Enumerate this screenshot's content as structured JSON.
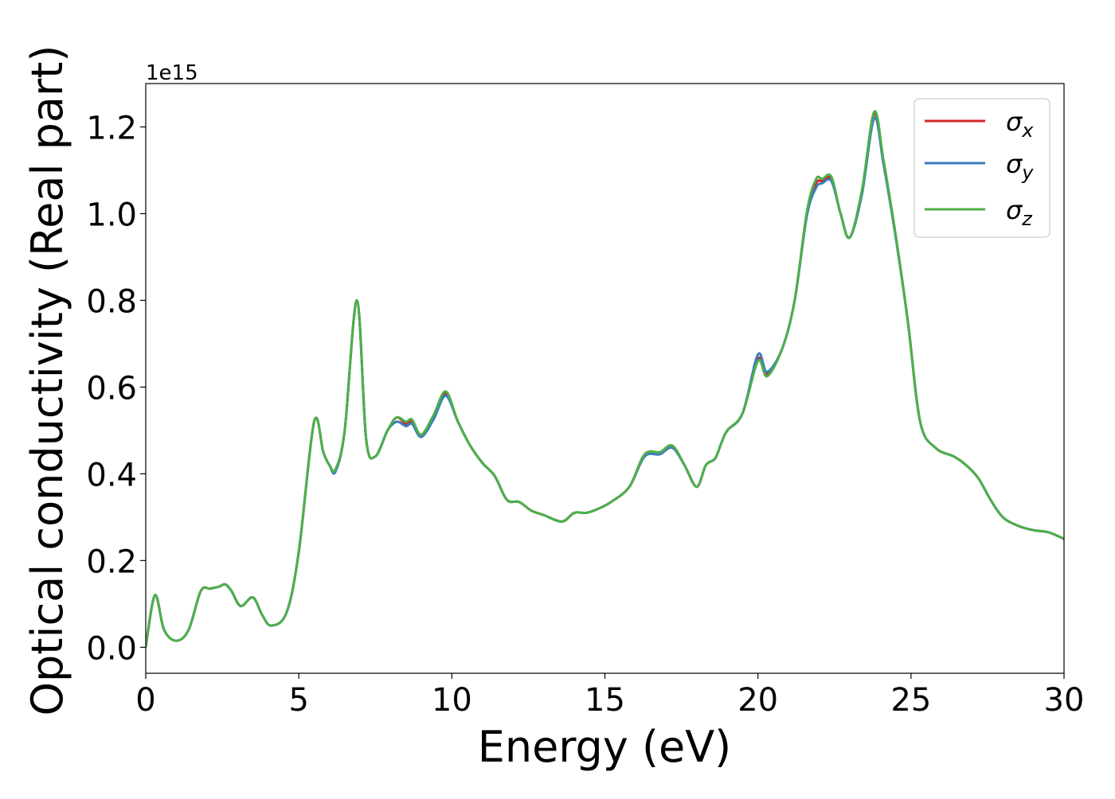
{
  "chart_data": {
    "type": "line",
    "xlabel": "Energy (eV)",
    "ylabel": "Optical conductivity (Real part)",
    "y_offset_text": "1e15",
    "xlim": [
      0,
      30
    ],
    "ylim": [
      -0.06,
      1.3
    ],
    "x_ticks": [
      0,
      5,
      10,
      15,
      20,
      25,
      30
    ],
    "x_tick_labels": [
      "0",
      "5",
      "10",
      "15",
      "20",
      "25",
      "30"
    ],
    "y_ticks": [
      0.0,
      0.2,
      0.4,
      0.6,
      0.8,
      1.0,
      1.2
    ],
    "y_tick_labels": [
      "0.0",
      "0.2",
      "0.4",
      "0.6",
      "0.8",
      "1.0",
      "1.2"
    ],
    "grid": false,
    "legend_position": "top-right",
    "x": [
      0,
      0.3,
      0.6,
      1.0,
      1.4,
      1.8,
      2.1,
      2.4,
      2.6,
      2.8,
      3.1,
      3.5,
      3.8,
      4.1,
      4.6,
      5.0,
      5.5,
      5.8,
      6.0,
      6.2,
      6.5,
      6.9,
      7.2,
      7.5,
      7.9,
      8.2,
      8.5,
      8.7,
      9.0,
      9.4,
      9.8,
      10.2,
      10.6,
      11.0,
      11.4,
      11.8,
      12.2,
      12.6,
      13.0,
      13.6,
      14.0,
      14.4,
      14.8,
      15.2,
      15.8,
      16.3,
      16.8,
      17.2,
      17.6,
      18.0,
      18.3,
      18.6,
      18.8,
      19.0,
      19.5,
      20.0,
      20.3,
      20.8,
      21.2,
      21.6,
      21.9,
      22.1,
      22.4,
      22.7,
      23.0,
      23.4,
      23.8,
      24.1,
      24.5,
      24.9,
      25.3,
      25.8,
      26.4,
      26.8,
      27.2,
      27.6,
      28.0,
      28.5,
      29.0,
      29.5,
      30.0
    ],
    "series": [
      {
        "name": "σx",
        "color": "#d62728",
        "values": [
          0.0,
          0.12,
          0.04,
          0.015,
          0.04,
          0.13,
          0.135,
          0.14,
          0.145,
          0.13,
          0.095,
          0.115,
          0.075,
          0.05,
          0.08,
          0.22,
          0.52,
          0.45,
          0.42,
          0.41,
          0.5,
          0.8,
          0.48,
          0.44,
          0.5,
          0.53,
          0.515,
          0.52,
          0.49,
          0.53,
          0.585,
          0.52,
          0.465,
          0.425,
          0.395,
          0.34,
          0.335,
          0.315,
          0.305,
          0.29,
          0.31,
          0.31,
          0.32,
          0.335,
          0.37,
          0.445,
          0.45,
          0.465,
          0.42,
          0.37,
          0.42,
          0.435,
          0.47,
          0.5,
          0.54,
          0.665,
          0.63,
          0.69,
          0.8,
          1.0,
          1.07,
          1.075,
          1.08,
          1.0,
          0.945,
          1.05,
          1.23,
          1.12,
          0.95,
          0.75,
          0.52,
          0.46,
          0.44,
          0.42,
          0.39,
          0.34,
          0.3,
          0.28,
          0.27,
          0.265,
          0.25
        ]
      },
      {
        "name": "σy",
        "color": "#3b7cc0",
        "values": [
          0.0,
          0.12,
          0.04,
          0.015,
          0.04,
          0.13,
          0.135,
          0.14,
          0.145,
          0.13,
          0.095,
          0.115,
          0.075,
          0.05,
          0.08,
          0.22,
          0.52,
          0.45,
          0.42,
          0.405,
          0.5,
          0.8,
          0.48,
          0.44,
          0.5,
          0.52,
          0.51,
          0.515,
          0.485,
          0.525,
          0.58,
          0.52,
          0.465,
          0.425,
          0.395,
          0.34,
          0.335,
          0.315,
          0.305,
          0.29,
          0.31,
          0.31,
          0.32,
          0.335,
          0.37,
          0.44,
          0.445,
          0.46,
          0.42,
          0.37,
          0.42,
          0.435,
          0.47,
          0.5,
          0.54,
          0.675,
          0.635,
          0.69,
          0.8,
          0.995,
          1.06,
          1.07,
          1.075,
          1.0,
          0.945,
          1.045,
          1.22,
          1.115,
          0.945,
          0.75,
          0.52,
          0.46,
          0.44,
          0.42,
          0.39,
          0.34,
          0.3,
          0.28,
          0.27,
          0.265,
          0.25
        ]
      },
      {
        "name": "σz",
        "color": "#4daf4a",
        "values": [
          0.0,
          0.12,
          0.04,
          0.015,
          0.04,
          0.13,
          0.135,
          0.14,
          0.145,
          0.13,
          0.095,
          0.115,
          0.075,
          0.05,
          0.08,
          0.22,
          0.52,
          0.45,
          0.42,
          0.41,
          0.5,
          0.8,
          0.48,
          0.44,
          0.5,
          0.53,
          0.52,
          0.525,
          0.49,
          0.535,
          0.59,
          0.52,
          0.465,
          0.425,
          0.395,
          0.34,
          0.335,
          0.315,
          0.305,
          0.29,
          0.31,
          0.31,
          0.32,
          0.335,
          0.37,
          0.445,
          0.45,
          0.465,
          0.42,
          0.37,
          0.42,
          0.435,
          0.47,
          0.5,
          0.54,
          0.66,
          0.625,
          0.69,
          0.8,
          1.005,
          1.08,
          1.08,
          1.085,
          1.0,
          0.945,
          1.055,
          1.235,
          1.125,
          0.95,
          0.75,
          0.52,
          0.46,
          0.44,
          0.42,
          0.39,
          0.34,
          0.3,
          0.28,
          0.27,
          0.265,
          0.25
        ]
      }
    ]
  },
  "legend": [
    {
      "symbol": "σ",
      "sub": "x"
    },
    {
      "symbol": "σ",
      "sub": "y"
    },
    {
      "symbol": "σ",
      "sub": "z"
    }
  ]
}
